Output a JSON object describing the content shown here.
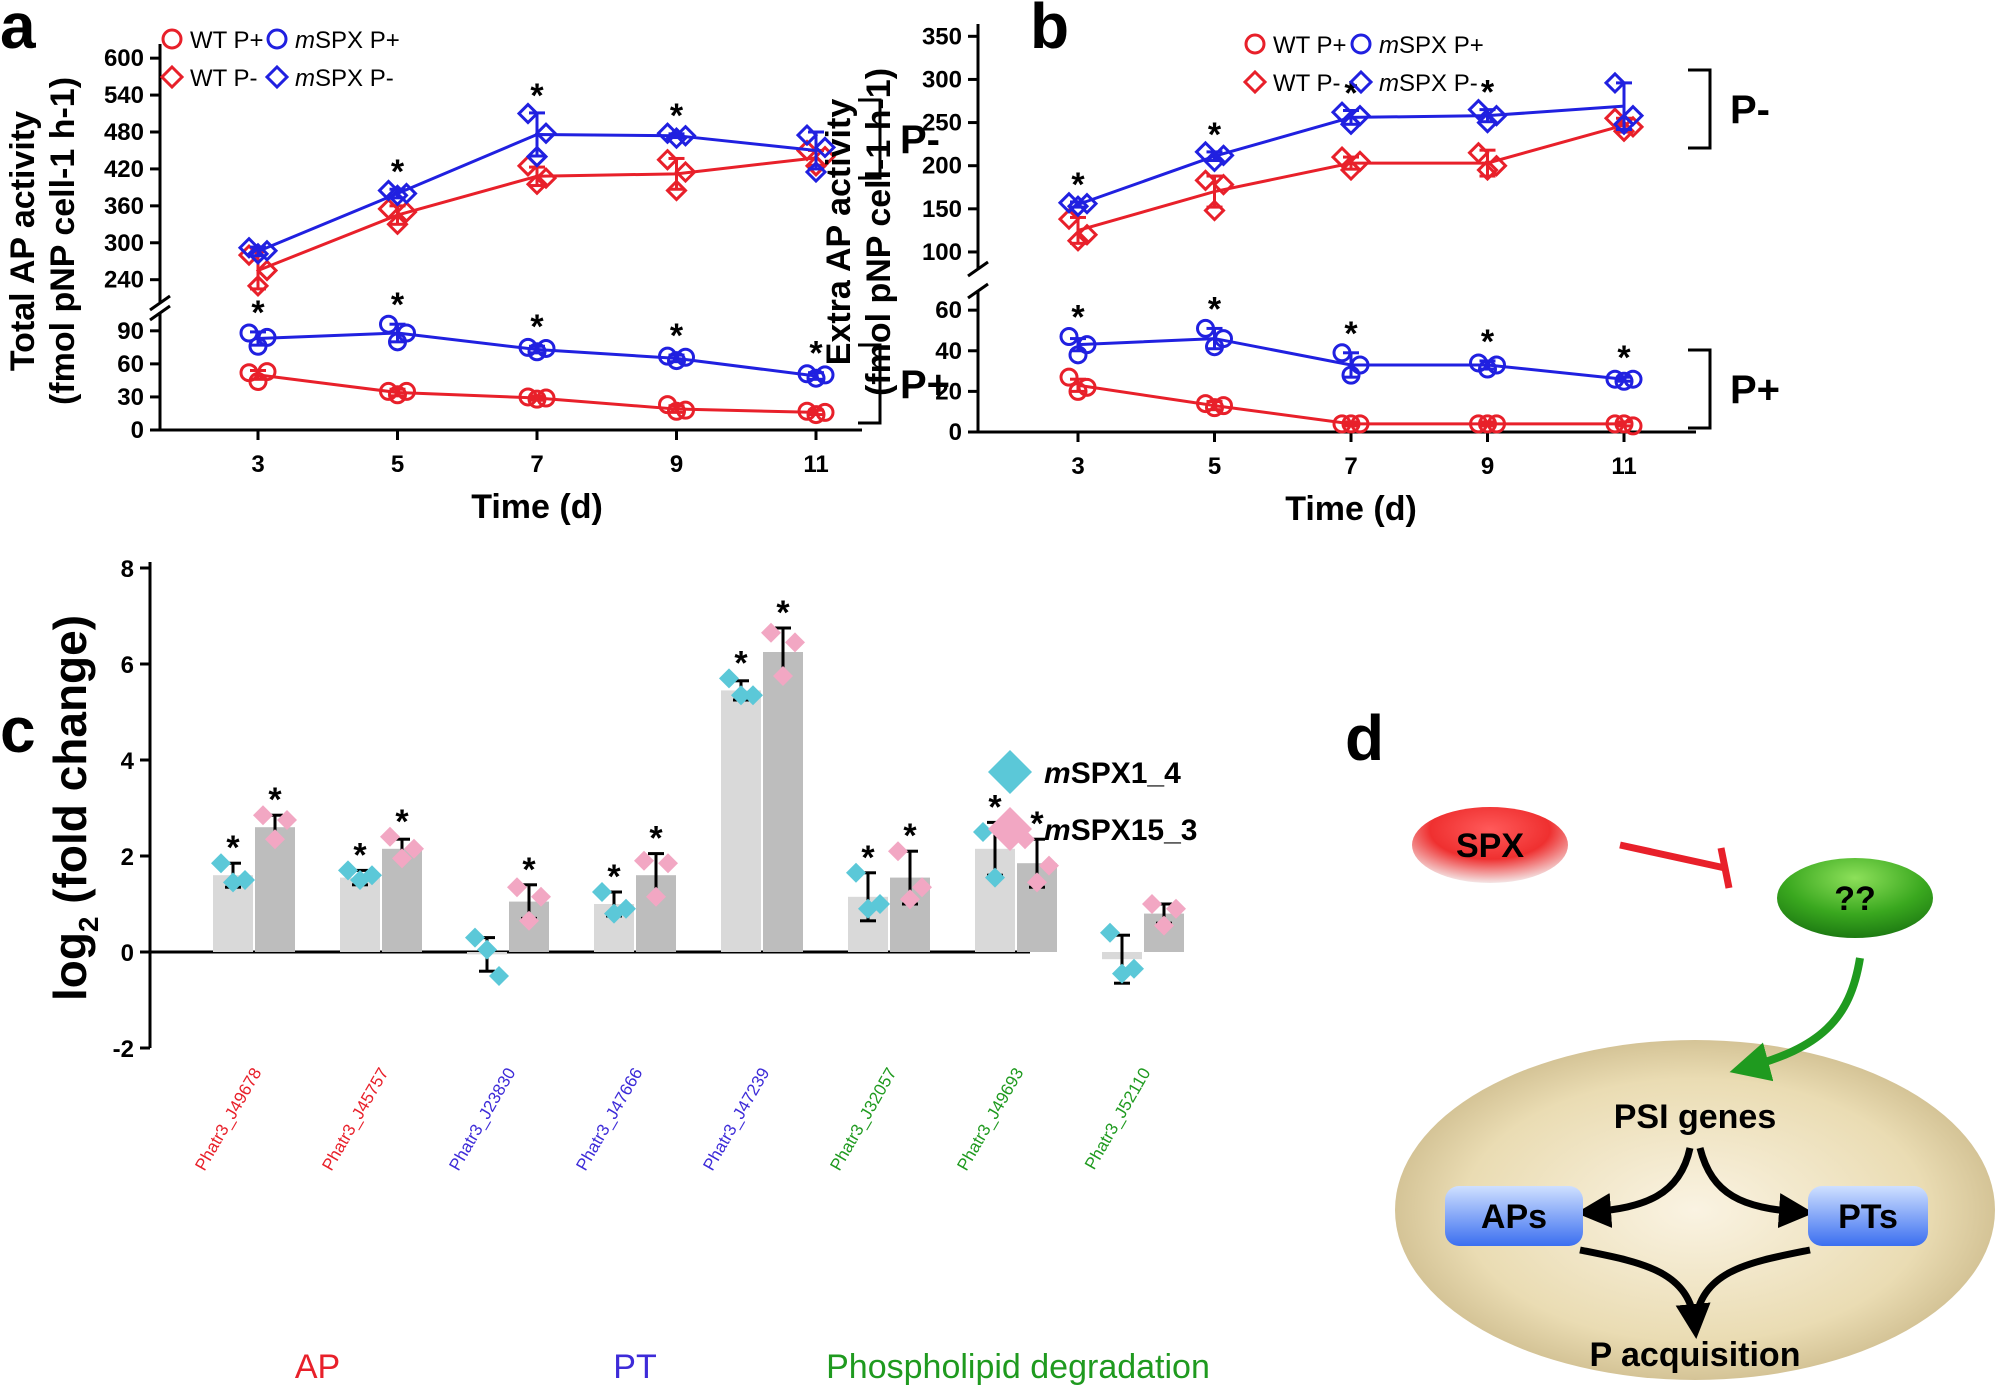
{
  "panel_labels": {
    "a": "a",
    "b": "b",
    "c": "c",
    "d": "d"
  },
  "colors": {
    "wt": "#e8202a",
    "mspx": "#2020e0",
    "cyan": "#5bc8d8",
    "pink": "#f2a7c3",
    "bar1": "#d9d9d9",
    "bar2": "#bdbdbd",
    "arrow_red": "#e8202a",
    "arrow_green": "#1f9a1f",
    "ap_red": "#e8202a",
    "pt_blue": "#3d2bd8",
    "phl_green": "#1f9a1f"
  },
  "chart_data": [
    {
      "type": "line",
      "id": "a",
      "title": "",
      "xlabel": "Time (d)",
      "ylabel_line1": "Total AP activity",
      "ylabel_line2": "(fmol pNP cell-1 h-1)",
      "x": [
        3,
        5,
        7,
        9,
        11
      ],
      "xticks": [
        "3",
        "5",
        "7",
        "9",
        "11"
      ],
      "y_upper_range": [
        220,
        610
      ],
      "y_upper_ticks": [
        "240",
        "300",
        "360",
        "420",
        "480",
        "540",
        "600"
      ],
      "y_lower_range": [
        0,
        98
      ],
      "y_lower_ticks": [
        "0",
        "30",
        "60",
        "90"
      ],
      "legend": [
        "WT P+",
        "mSPX P+",
        "WT P-",
        "mSPX P-"
      ],
      "bracket_labels": [
        "P-",
        "P+"
      ],
      "series": [
        {
          "name": "WT P+",
          "values": [
            50,
            34,
            29,
            19,
            16
          ],
          "err": [
            4,
            3,
            2,
            3,
            2
          ],
          "points": [
            [
              52,
              44,
              53
            ],
            [
              35,
              32,
              35
            ],
            [
              30,
              28,
              29
            ],
            [
              23,
              17,
              18
            ],
            [
              17,
              14,
              16
            ]
          ],
          "marker": "circle",
          "color": "wt"
        },
        {
          "name": "mSPX P+",
          "values": [
            83,
            88,
            73,
            65,
            49
          ],
          "err": [
            6,
            8,
            3,
            3,
            3
          ],
          "points": [
            [
              88,
              76,
              84
            ],
            [
              96,
              80,
              88
            ],
            [
              75,
              71,
              74
            ],
            [
              67,
              63,
              66
            ],
            [
              51,
              47,
              50
            ]
          ],
          "marker": "circle",
          "color": "mspx"
        },
        {
          "name": "WT P-",
          "values": [
            255,
            345,
            408,
            412,
            438
          ],
          "err": [
            30,
            15,
            15,
            25,
            12
          ],
          "points": [
            [
              280,
              230,
              255
            ],
            [
              355,
              330,
              350
            ],
            [
              425,
              395,
              405
            ],
            [
              435,
              385,
              415
            ],
            [
              450,
              425,
              440
            ]
          ],
          "marker": "diamond",
          "color": "wt"
        },
        {
          "name": "mSPX P-",
          "values": [
            286,
            380,
            476,
            474,
            450
          ],
          "err": [
            7,
            7,
            35,
            3,
            30
          ],
          "points": [
            [
              292,
              282,
              287
            ],
            [
              385,
              377,
              380
            ],
            [
              510,
              440,
              478
            ],
            [
              478,
              470,
              474
            ],
            [
              475,
              415,
              455
            ]
          ],
          "marker": "diamond",
          "color": "mspx"
        }
      ],
      "stars_upper": [
        "",
        "*",
        "*",
        "*",
        ""
      ],
      "stars_lower": [
        "*",
        "*",
        "*",
        "*",
        "*"
      ],
      "star_lower_labels": [
        "*",
        "*",
        "*",
        "*",
        "*"
      ],
      "star_upper_labels": [
        "*",
        "*",
        "*"
      ]
    },
    {
      "type": "line",
      "id": "b",
      "title": "",
      "xlabel": "Time (d)",
      "ylabel_line1": "Extra AP activity",
      "ylabel_line2": "(fmol pNP cell-1 h-1)",
      "x": [
        3,
        5,
        7,
        9,
        11
      ],
      "xticks": [
        "3",
        "5",
        "7",
        "9",
        "11"
      ],
      "y_upper_range": [
        93,
        355
      ],
      "y_upper_ticks": [
        "100",
        "150",
        "200",
        "250",
        "300",
        "350"
      ],
      "y_lower_range": [
        0,
        65
      ],
      "y_lower_ticks": [
        "0",
        "20",
        "40",
        "60"
      ],
      "legend": [
        "WT P+",
        "mSPX P+",
        "WT P-",
        "mSPX P-"
      ],
      "bracket_labels": [
        "P-",
        "P+"
      ],
      "series": [
        {
          "name": "WT P+",
          "values": [
            23,
            13,
            4,
            4,
            4
          ],
          "err": [
            3,
            2,
            1,
            1,
            1
          ],
          "points": [
            [
              27,
              20,
              22
            ],
            [
              14,
              12,
              13
            ],
            [
              4,
              4,
              4
            ],
            [
              4,
              4,
              4
            ],
            [
              4,
              4,
              3
            ]
          ],
          "marker": "circle",
          "color": "wt"
        },
        {
          "name": "mSPX P+",
          "values": [
            43,
            46,
            33,
            33,
            26
          ],
          "err": [
            3,
            5,
            6,
            2,
            1
          ],
          "points": [
            [
              47,
              38,
              43
            ],
            [
              51,
              42,
              46
            ],
            [
              39,
              28,
              33
            ],
            [
              34,
              31,
              33
            ],
            [
              26,
              25,
              26
            ]
          ],
          "marker": "circle",
          "color": "mspx"
        },
        {
          "name": "WT P-",
          "values": [
            125,
            170,
            203,
            203,
            247
          ],
          "err": [
            15,
            18,
            7,
            15,
            8
          ],
          "points": [
            [
              138,
              113,
              120
            ],
            [
              183,
              148,
              178
            ],
            [
              210,
              195,
              205
            ],
            [
              215,
              195,
              200
            ],
            [
              255,
              240,
              245
            ]
          ],
          "marker": "diamond",
          "color": "wt"
        },
        {
          "name": "mSPX P-",
          "values": [
            155,
            211,
            256,
            258,
            269
          ],
          "err": [
            3,
            5,
            8,
            7,
            27
          ],
          "points": [
            [
              157,
              153,
              156
            ],
            [
              216,
              205,
              212
            ],
            [
              262,
              248,
              258
            ],
            [
              265,
              250,
              258
            ],
            [
              296,
              248,
              258
            ]
          ],
          "marker": "diamond",
          "color": "mspx"
        }
      ],
      "stars_upper": [
        "*",
        "*",
        "*",
        "*",
        ""
      ],
      "stars_lower": [
        "*",
        "*",
        "*",
        "*",
        "*"
      ],
      "star_lower_labels": [
        "*",
        "*",
        "*",
        "*",
        "*"
      ],
      "star_upper_labels": [
        "*",
        "*",
        "*",
        "*"
      ]
    },
    {
      "type": "bar",
      "id": "c",
      "ylabel": "log2 (fold change)",
      "ylabel_main": "log",
      "ylabel_sub": "2",
      "ylabel_rest": " (fold change)",
      "ylim": [
        -2,
        8
      ],
      "yticks": [
        "-2",
        "0",
        "2",
        "4",
        "6",
        "8"
      ],
      "categories": [
        "Phatr3_J49678",
        "Phatr3_J45757",
        "Phatr3_J23830",
        "Phatr3_J47666",
        "Phatr3_J47239",
        "Phatr3_J32057",
        "Phatr3_J49693",
        "Phatr3_J52110"
      ],
      "category_colors": [
        "ap_red",
        "ap_red",
        "pt_blue",
        "pt_blue",
        "pt_blue",
        "phl_green",
        "phl_green",
        "phl_green"
      ],
      "groups": [
        {
          "label": "AP",
          "color": "ap_red",
          "from": 0,
          "to": 1
        },
        {
          "label": "PT",
          "color": "pt_blue",
          "from": 2,
          "to": 4
        },
        {
          "label": "Phospholipid degradation",
          "color": "phl_green",
          "from": 5,
          "to": 7
        }
      ],
      "legend": [
        "mSPX1_4",
        "mSPX15_3"
      ],
      "series": [
        {
          "name": "mSPX1_4",
          "values": [
            1.6,
            1.55,
            -0.05,
            1.0,
            5.45,
            1.15,
            2.15,
            -0.15
          ],
          "err": [
            0.25,
            0.15,
            0.35,
            0.25,
            0.2,
            0.5,
            0.55,
            0.5
          ],
          "points": [
            [
              1.85,
              1.45,
              1.5
            ],
            [
              1.7,
              1.5,
              1.6
            ],
            [
              0.3,
              0.05,
              -0.5
            ],
            [
              1.25,
              0.8,
              0.9
            ],
            [
              5.7,
              5.35,
              5.35
            ],
            [
              1.65,
              0.9,
              1.0
            ],
            [
              2.5,
              1.55,
              2.45
            ],
            [
              0.4,
              -0.45,
              -0.35
            ]
          ],
          "stars": [
            "*",
            "*",
            "",
            "*",
            "*",
            "*",
            "*",
            ""
          ],
          "color": "cyan"
        },
        {
          "name": "mSPX15_3",
          "values": [
            2.6,
            2.15,
            1.05,
            1.6,
            6.25,
            1.55,
            1.85,
            0.8
          ],
          "err": [
            0.25,
            0.2,
            0.35,
            0.45,
            0.5,
            0.55,
            0.5,
            0.2
          ],
          "points": [
            [
              2.85,
              2.35,
              2.75
            ],
            [
              2.4,
              1.95,
              2.15
            ],
            [
              1.35,
              0.65,
              1.15
            ],
            [
              1.9,
              1.15,
              1.85
            ],
            [
              6.65,
              5.75,
              6.45
            ],
            [
              2.1,
              1.1,
              1.35
            ],
            [
              2.35,
              1.45,
              1.8
            ],
            [
              1.0,
              0.55,
              0.9
            ]
          ],
          "stars": [
            "*",
            "*",
            "*",
            "*",
            "*",
            "*",
            "*",
            ""
          ],
          "color": "pink"
        }
      ]
    }
  ],
  "diagram": {
    "spx_label": "SPX",
    "unknown_label": "??",
    "psi_label": "PSI genes",
    "aps_label": "APs",
    "pts_label": "PTs",
    "result_label": "P  acquisition"
  }
}
